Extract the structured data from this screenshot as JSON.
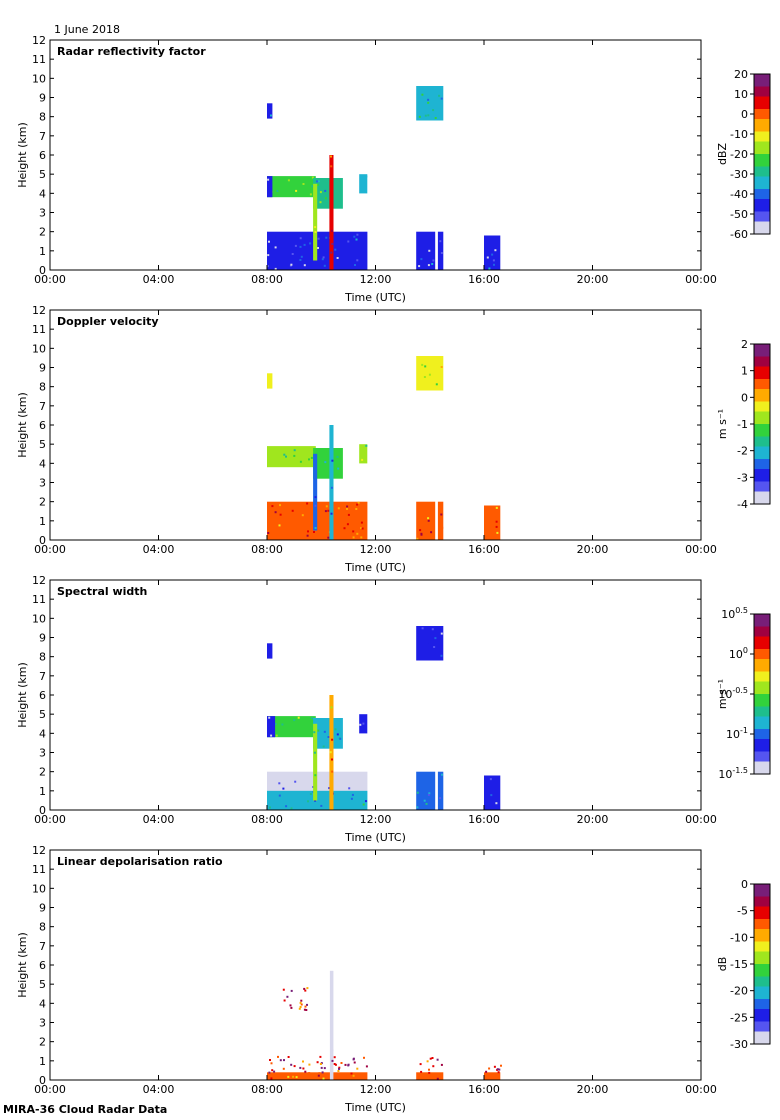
{
  "header": {
    "date": "1 June 2018",
    "footer": "MIRA-36 Cloud Radar Data"
  },
  "colormap": [
    "#d8d8ec",
    "#5555f0",
    "#1e1ee6",
    "#1e64e6",
    "#1eb4d2",
    "#1ebe8c",
    "#32d23c",
    "#a0e61e",
    "#f0f01e",
    "#ffaa00",
    "#ff5a00",
    "#e60000",
    "#a00040",
    "#781e78"
  ],
  "chart_data": [
    {
      "type": "heatmap",
      "title": "Radar reflectivity factor",
      "xlabel": "Time (UTC)",
      "ylabel": "Height (km)",
      "xlim": [
        0,
        24
      ],
      "ylim": [
        0,
        12
      ],
      "xticks": [
        "00:00",
        "04:00",
        "08:00",
        "12:00",
        "16:00",
        "20:00",
        "00:00"
      ],
      "yticks": [
        "0",
        "1",
        "2",
        "3",
        "4",
        "5",
        "6",
        "7",
        "8",
        "9",
        "10",
        "11",
        "12"
      ],
      "colorbar": {
        "label": "dBZ",
        "ticks": [
          "20",
          "10",
          "0",
          "-10",
          "-20",
          "-30",
          "-40",
          "-50",
          "-60"
        ],
        "range": [
          -60,
          20
        ]
      },
      "features": [
        {
          "x0": 8.0,
          "x1": 11.7,
          "y0": 0.0,
          "y1": 2.0,
          "value": 0.15
        },
        {
          "x0": 13.5,
          "x1": 14.2,
          "y0": 0.0,
          "y1": 2.0,
          "value": 0.15
        },
        {
          "x0": 14.3,
          "x1": 14.5,
          "y0": 0.0,
          "y1": 2.0,
          "value": 0.15
        },
        {
          "x0": 16.0,
          "x1": 16.6,
          "y0": 0.0,
          "y1": 1.8,
          "value": 0.15
        },
        {
          "x0": 8.0,
          "x1": 9.8,
          "y0": 3.8,
          "y1": 4.9,
          "value": 0.48
        },
        {
          "x0": 8.0,
          "x1": 8.2,
          "y0": 3.8,
          "y1": 4.9,
          "value": 0.15
        },
        {
          "x0": 9.7,
          "x1": 10.8,
          "y0": 3.2,
          "y1": 4.8,
          "value": 0.4
        },
        {
          "x0": 11.4,
          "x1": 11.7,
          "y0": 4.0,
          "y1": 5.0,
          "value": 0.35
        },
        {
          "x0": 10.3,
          "x1": 10.45,
          "y0": 0.0,
          "y1": 6.0,
          "value": 0.85
        },
        {
          "x0": 9.7,
          "x1": 9.85,
          "y0": 0.5,
          "y1": 4.5,
          "value": 0.55
        },
        {
          "x0": 8.0,
          "x1": 8.2,
          "y0": 7.9,
          "y1": 8.7,
          "value": 0.2
        },
        {
          "x0": 13.5,
          "x1": 14.5,
          "y0": 7.8,
          "y1": 9.6,
          "value": 0.35
        }
      ]
    },
    {
      "type": "heatmap",
      "title": "Doppler velocity",
      "xlabel": "Time (UTC)",
      "ylabel": "Height (km)",
      "xlim": [
        0,
        24
      ],
      "ylim": [
        0,
        12
      ],
      "xticks": [
        "00:00",
        "04:00",
        "08:00",
        "12:00",
        "16:00",
        "20:00",
        "00:00"
      ],
      "yticks": [
        "0",
        "1",
        "2",
        "3",
        "4",
        "5",
        "6",
        "7",
        "8",
        "9",
        "10",
        "11",
        "12"
      ],
      "colorbar": {
        "label": "m s⁻¹",
        "ticks": [
          "2",
          "1",
          "0",
          "-1",
          "-2",
          "-3",
          "-4"
        ],
        "range": [
          -4,
          2
        ]
      },
      "features": [
        {
          "x0": 8.0,
          "x1": 11.7,
          "y0": 0.0,
          "y1": 2.0,
          "value": 0.78
        },
        {
          "x0": 13.5,
          "x1": 14.2,
          "y0": 0.0,
          "y1": 2.0,
          "value": 0.78
        },
        {
          "x0": 14.3,
          "x1": 14.5,
          "y0": 0.0,
          "y1": 2.0,
          "value": 0.78
        },
        {
          "x0": 16.0,
          "x1": 16.6,
          "y0": 0.0,
          "y1": 1.8,
          "value": 0.72
        },
        {
          "x0": 8.0,
          "x1": 9.8,
          "y0": 3.8,
          "y1": 4.9,
          "value": 0.5
        },
        {
          "x0": 9.7,
          "x1": 10.8,
          "y0": 3.2,
          "y1": 4.8,
          "value": 0.45
        },
        {
          "x0": 11.4,
          "x1": 11.7,
          "y0": 4.0,
          "y1": 5.0,
          "value": 0.5
        },
        {
          "x0": 10.3,
          "x1": 10.45,
          "y0": 0.0,
          "y1": 6.0,
          "value": 0.3
        },
        {
          "x0": 9.7,
          "x1": 9.85,
          "y0": 0.5,
          "y1": 4.5,
          "value": 0.25
        },
        {
          "x0": 8.0,
          "x1": 8.2,
          "y0": 7.9,
          "y1": 8.7,
          "value": 0.62
        },
        {
          "x0": 13.5,
          "x1": 14.5,
          "y0": 7.8,
          "y1": 9.6,
          "value": 0.58
        }
      ]
    },
    {
      "type": "heatmap",
      "title": "Spectral width",
      "xlabel": "Time (UTC)",
      "ylabel": "Height (km)",
      "xlim": [
        0,
        24
      ],
      "ylim": [
        0,
        12
      ],
      "xticks": [
        "00:00",
        "04:00",
        "08:00",
        "12:00",
        "16:00",
        "20:00",
        "00:00"
      ],
      "yticks": [
        "0",
        "1",
        "2",
        "3",
        "4",
        "5",
        "6",
        "7",
        "8",
        "9",
        "10",
        "11",
        "12"
      ],
      "colorbar": {
        "label": "m s⁻¹",
        "ticks": [
          "10^0.5",
          "10^0",
          "10^-0.5",
          "10^-1",
          "10^-1.5"
        ],
        "range": [
          -1.5,
          0.5
        ]
      },
      "features": [
        {
          "x0": 8.0,
          "x1": 11.7,
          "y0": 1.0,
          "y1": 2.0,
          "value": 0.03
        },
        {
          "x0": 8.0,
          "x1": 11.7,
          "y0": 0.0,
          "y1": 1.0,
          "value": 0.3
        },
        {
          "x0": 13.5,
          "x1": 14.2,
          "y0": 0.0,
          "y1": 2.0,
          "value": 0.25
        },
        {
          "x0": 14.3,
          "x1": 14.5,
          "y0": 0.0,
          "y1": 2.0,
          "value": 0.25
        },
        {
          "x0": 16.0,
          "x1": 16.6,
          "y0": 0.0,
          "y1": 1.8,
          "value": 0.2
        },
        {
          "x0": 8.0,
          "x1": 9.8,
          "y0": 3.8,
          "y1": 4.9,
          "value": 0.45
        },
        {
          "x0": 8.0,
          "x1": 8.3,
          "y0": 3.8,
          "y1": 4.9,
          "value": 0.15
        },
        {
          "x0": 9.7,
          "x1": 10.8,
          "y0": 3.2,
          "y1": 4.8,
          "value": 0.35
        },
        {
          "x0": 11.4,
          "x1": 11.7,
          "y0": 4.0,
          "y1": 5.0,
          "value": 0.15
        },
        {
          "x0": 10.3,
          "x1": 10.45,
          "y0": 0.0,
          "y1": 6.0,
          "value": 0.7
        },
        {
          "x0": 9.7,
          "x1": 9.85,
          "y0": 0.5,
          "y1": 4.5,
          "value": 0.55
        },
        {
          "x0": 8.0,
          "x1": 8.2,
          "y0": 7.9,
          "y1": 8.7,
          "value": 0.15
        },
        {
          "x0": 13.5,
          "x1": 14.5,
          "y0": 7.8,
          "y1": 9.6,
          "value": 0.15
        }
      ]
    },
    {
      "type": "heatmap",
      "title": "Linear depolarisation ratio",
      "xlabel": "Time (UTC)",
      "ylabel": "Height (km)",
      "xlim": [
        0,
        24
      ],
      "ylim": [
        0,
        12
      ],
      "xticks": [
        "00:00",
        "04:00",
        "08:00",
        "12:00",
        "16:00",
        "20:00",
        "00:00"
      ],
      "yticks": [
        "0",
        "1",
        "2",
        "3",
        "4",
        "5",
        "6",
        "7",
        "8",
        "9",
        "10",
        "11",
        "12"
      ],
      "colorbar": {
        "label": "dB",
        "ticks": [
          "0",
          "-5",
          "-10",
          "-15",
          "-20",
          "-25",
          "-30"
        ],
        "range": [
          -30,
          0
        ]
      },
      "features": [
        {
          "x0": 8.0,
          "x1": 11.7,
          "y0": 0.0,
          "y1": 0.4,
          "value": 0.75
        },
        {
          "x0": 13.5,
          "x1": 14.5,
          "y0": 0.0,
          "y1": 0.4,
          "value": 0.75
        },
        {
          "x0": 16.0,
          "x1": 16.6,
          "y0": 0.0,
          "y1": 0.4,
          "value": 0.75
        },
        {
          "x0": 10.32,
          "x1": 10.45,
          "y0": 0.0,
          "y1": 5.7,
          "value": 0.0
        },
        {
          "x0": 8.5,
          "x1": 9.5,
          "y0": 3.5,
          "y1": 4.9,
          "value": 0.82,
          "sparse": true
        },
        {
          "x0": 8.0,
          "x1": 11.7,
          "y0": 0.4,
          "y1": 1.3,
          "value": 0.85,
          "sparse": true
        },
        {
          "x0": 13.5,
          "x1": 14.5,
          "y0": 0.4,
          "y1": 1.2,
          "value": 0.85,
          "sparse": true
        },
        {
          "x0": 16.0,
          "x1": 16.6,
          "y0": 0.4,
          "y1": 0.9,
          "value": 0.85,
          "sparse": true
        }
      ]
    }
  ]
}
